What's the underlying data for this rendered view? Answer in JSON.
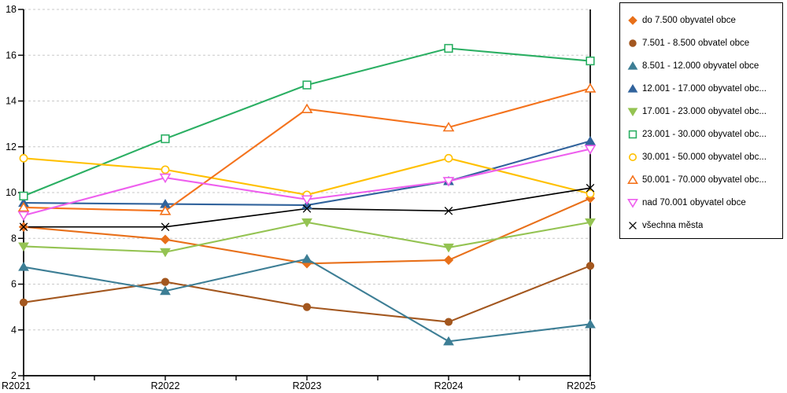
{
  "chart_data": {
    "type": "line",
    "title": "",
    "xlabel": "",
    "ylabel": "",
    "categories": [
      "R2021",
      "R2022",
      "R2023",
      "R2024",
      "R2025"
    ],
    "ylim": [
      2,
      18
    ],
    "y_ticks": [
      2,
      4,
      6,
      8,
      10,
      12,
      14,
      16,
      18
    ],
    "grid": "horizontal-dashed",
    "legend_position": "right",
    "background": "#ffffff",
    "axis_color": "#000000",
    "grid_color": "#c9c9c9",
    "series": [
      {
        "name": "do 7.500 obyvatel obce",
        "color": "#e8701a",
        "marker": "diamond",
        "filled": true,
        "values": [
          8.5,
          7.95,
          6.9,
          7.05,
          9.75
        ]
      },
      {
        "name": "7.501 - 8.500 obvatel obce",
        "color": "#a3571f",
        "marker": "circle",
        "filled": true,
        "values": [
          5.2,
          6.1,
          5.0,
          4.35,
          6.8
        ]
      },
      {
        "name": "8.501 - 12.000 obyvatel obce",
        "color": "#3d7e95",
        "marker": "triangle-up",
        "filled": true,
        "values": [
          6.75,
          5.7,
          7.1,
          3.5,
          4.25
        ]
      },
      {
        "name": "12.001 - 17.000 obyvatel obc...",
        "color": "#31639c",
        "marker": "triangle-up",
        "filled": true,
        "values": [
          9.55,
          9.5,
          9.45,
          10.5,
          12.25
        ]
      },
      {
        "name": "17.001 - 23.000 obyvatel obc...",
        "color": "#94c352",
        "marker": "triangle-down",
        "filled": true,
        "values": [
          7.65,
          7.4,
          8.7,
          7.6,
          8.7
        ]
      },
      {
        "name": "23.001 - 30.000 obyvatel obc...",
        "color": "#2baf63",
        "marker": "square",
        "filled": false,
        "values": [
          9.85,
          12.35,
          14.7,
          16.3,
          15.75
        ]
      },
      {
        "name": "30.001 - 50.000 obyvatel obc...",
        "color": "#ffc000",
        "marker": "circle",
        "filled": false,
        "values": [
          11.5,
          11.0,
          9.9,
          11.5,
          9.95
        ]
      },
      {
        "name": "50.001 - 70.000 obyvatel obc...",
        "color": "#f4731d",
        "marker": "triangle-up",
        "filled": false,
        "values": [
          9.35,
          9.2,
          13.65,
          12.85,
          14.55
        ]
      },
      {
        "name": "nad 70.001 obyvatel obce",
        "color": "#ee5fee",
        "marker": "triangle-down",
        "filled": false,
        "values": [
          9.0,
          10.65,
          9.7,
          10.5,
          11.9
        ]
      },
      {
        "name": "všechna města",
        "color": "#000000",
        "marker": "x",
        "filled": true,
        "values": [
          8.5,
          8.5,
          9.3,
          9.2,
          10.2
        ]
      }
    ]
  }
}
